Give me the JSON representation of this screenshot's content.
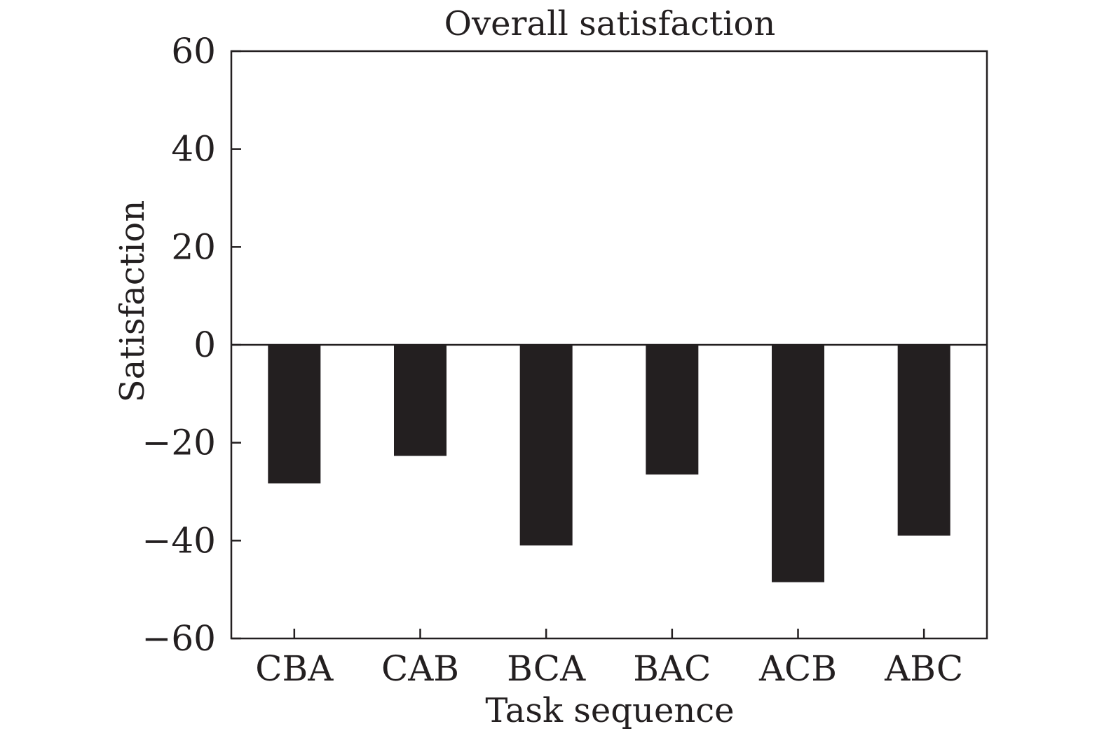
{
  "chart_data": {
    "type": "bar",
    "title": "Overall satisfaction",
    "xlabel": "Task sequence",
    "ylabel": "Satisfaction",
    "categories": [
      "CBA",
      "CAB",
      "BCA",
      "BAC",
      "ACB",
      "ABC"
    ],
    "values": [
      -28.3,
      -22.7,
      -41.0,
      -26.5,
      -48.5,
      -39.0
    ],
    "ylim": [
      -60,
      60
    ],
    "yticks": [
      60,
      40,
      20,
      0,
      -20,
      -40,
      -60
    ],
    "ytick_labels": [
      "60",
      "40",
      "20",
      "0",
      "−20",
      "−40",
      "−60"
    ],
    "grid": false,
    "legend": "none",
    "bar_color": "#231f20",
    "axis_color": "#231f20",
    "zero_line": true
  }
}
